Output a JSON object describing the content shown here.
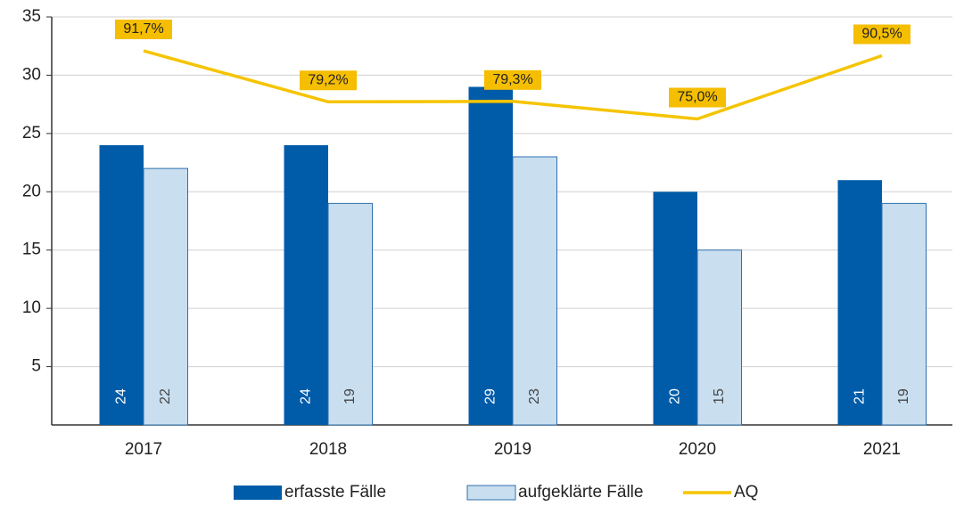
{
  "chart_data": {
    "type": "bar",
    "categories": [
      "2017",
      "2018",
      "2019",
      "2020",
      "2021"
    ],
    "series": [
      {
        "name": "erfasste Fälle",
        "type": "bar",
        "color": "#005ca8",
        "values": [
          24,
          24,
          29,
          20,
          21
        ]
      },
      {
        "name": "aufgeklärte Fälle",
        "type": "bar",
        "color": "#c9dff0",
        "values": [
          22,
          19,
          23,
          15,
          19
        ]
      },
      {
        "name": "AQ",
        "type": "line",
        "axis": "y2",
        "color": "#f5c400",
        "values": [
          91.7,
          79.2,
          79.3,
          75.0,
          90.5
        ],
        "value_labels": [
          "91,7%",
          "79,2%",
          "79,3%",
          "75,0%",
          "90,5%"
        ]
      }
    ],
    "ylim": [
      0,
      35
    ],
    "yticks": [
      5,
      10,
      15,
      20,
      25,
      30,
      35
    ],
    "y2lim": [
      0,
      100
    ],
    "grid": true,
    "legend": "bottom"
  }
}
